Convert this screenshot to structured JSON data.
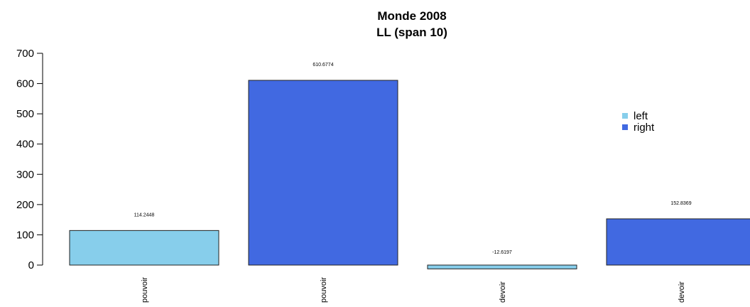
{
  "chart_data": {
    "type": "bar",
    "title": "Monde 2008",
    "subtitle": "LL (span 10)",
    "xlabel": "",
    "ylabel": "",
    "ylim": [
      0,
      700
    ],
    "yticks": [
      0,
      100,
      200,
      300,
      400,
      500,
      600,
      700
    ],
    "categories": [
      "pouvoir",
      "pouvoir",
      "devoir",
      "devoir"
    ],
    "values": [
      114.2448,
      610.6774,
      -12.6197,
      152.8369
    ],
    "value_labels": [
      "114.2448",
      "610.6774",
      "-12.6197",
      "152.8369"
    ],
    "bar_series": [
      "left",
      "right",
      "left",
      "right"
    ],
    "legend": {
      "position": "right",
      "entries": [
        {
          "label": "left",
          "color": "#87ceeb"
        },
        {
          "label": "right",
          "color": "#4169e1"
        }
      ]
    },
    "colors": {
      "left": "#87ceeb",
      "right": "#4169e1"
    },
    "grid": false
  }
}
